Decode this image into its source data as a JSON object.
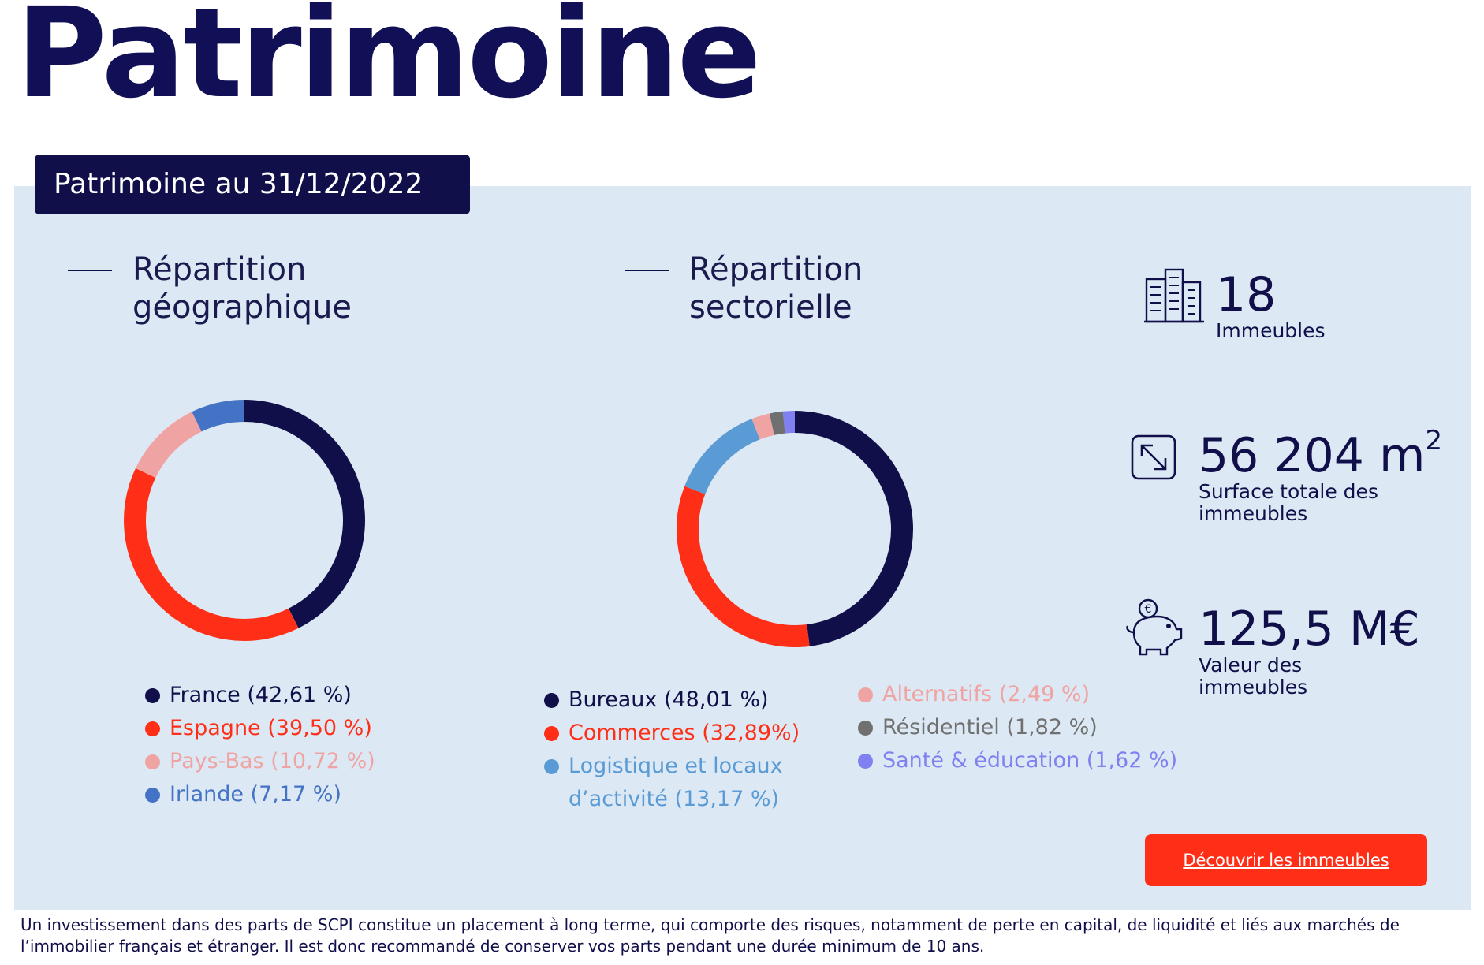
{
  "page": {
    "title": "Patrimoine"
  },
  "panel": {
    "date_label": "Patrimoine au 31/12/2022"
  },
  "geo": {
    "heading_line1": "Répartition",
    "heading_line2": "géographique"
  },
  "sector": {
    "heading_line1": "Répartition",
    "heading_line2": "sectorielle"
  },
  "chart_data": [
    {
      "type": "pie",
      "donut": true,
      "title": "Répartition géographique",
      "categories": [
        "France",
        "Espagne",
        "Pays-Bas",
        "Irlande"
      ],
      "values": [
        42.61,
        39.5,
        10.72,
        7.17
      ],
      "labels": [
        "France (42,61 %)",
        "Espagne (39,50 %)",
        "Pays-Bas (10,72 %)",
        "Irlande (7,17 %)"
      ],
      "colors": [
        "#110f4a",
        "#ff2e17",
        "#f0a3a3",
        "#4472c4"
      ],
      "legend": "bottom"
    },
    {
      "type": "pie",
      "donut": true,
      "title": "Répartition sectorielle",
      "categories": [
        "Bureaux",
        "Commerces",
        "Logistique et locaux d'activité",
        "Alternatifs",
        "Résidentiel",
        "Santé & éducation"
      ],
      "values": [
        48.01,
        32.89,
        13.17,
        2.49,
        1.82,
        1.62
      ],
      "labels": [
        "Bureaux (48,01 %)",
        "Commerces (32,89%)",
        "Logistique et locaux d’activité (13,17 %)",
        "Alternatifs (2,49 %)",
        "Résidentiel (1,82 %)",
        "Santé & éducation (1,62 %)"
      ],
      "colors": [
        "#110f4a",
        "#ff2e17",
        "#5a9bd5",
        "#f0a3a3",
        "#707070",
        "#8080f0"
      ],
      "legend": "bottom"
    }
  ],
  "stats": {
    "buildings": {
      "value": "18",
      "desc": "Immeubles",
      "icon": "buildings-icon"
    },
    "surface": {
      "value": "56 204 m",
      "sup": "2",
      "desc_line1": "Surface totale des",
      "desc_line2": "immeubles",
      "icon": "expand-arrow-icon"
    },
    "valuation": {
      "value": "125,5 M€",
      "desc_line1": "Valeur des",
      "desc_line2": "immeubles",
      "icon": "piggy-bank-icon"
    }
  },
  "cta": {
    "label": "Découvrir les immeubles"
  },
  "disclaimer": "Un investissement dans des parts de SCPI constitue un placement à long terme, qui comporte des risques, notamment de perte en capital, de liquidité et liés aux marchés de l’immobilier français et étranger. Il est donc recommandé de conserver vos parts pendant une durée minimum de 10 ans."
}
